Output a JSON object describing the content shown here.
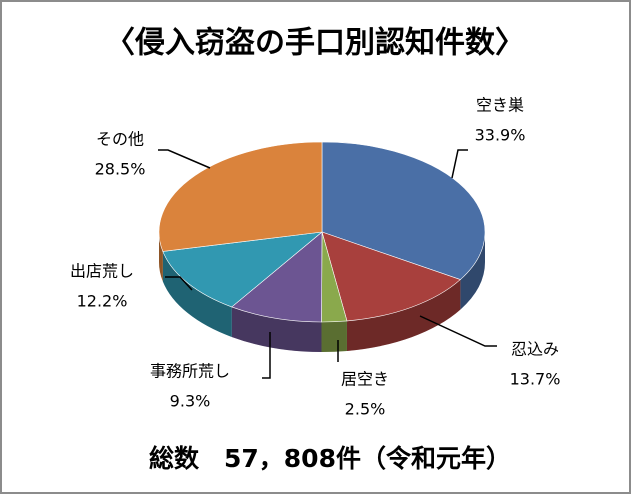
{
  "chart_data": {
    "type": "pie",
    "title": "〈侵入窃盗の手口別認知件数〉",
    "categories": [
      "空き巣",
      "忍込み",
      "居空き",
      "事務所荒し",
      "出店荒し",
      "その他"
    ],
    "values": [
      33.9,
      13.7,
      2.5,
      9.3,
      12.2,
      28.5
    ],
    "value_labels": [
      "33.9%",
      "13.7%",
      "2.5%",
      "9.3%",
      "12.2%",
      "28.5%"
    ],
    "colors": [
      "#4a6fa6",
      "#a8403d",
      "#8aa94c",
      "#6c5592",
      "#3198b1",
      "#da833c"
    ],
    "annotation": "総数　57，808件（令和元年）"
  }
}
